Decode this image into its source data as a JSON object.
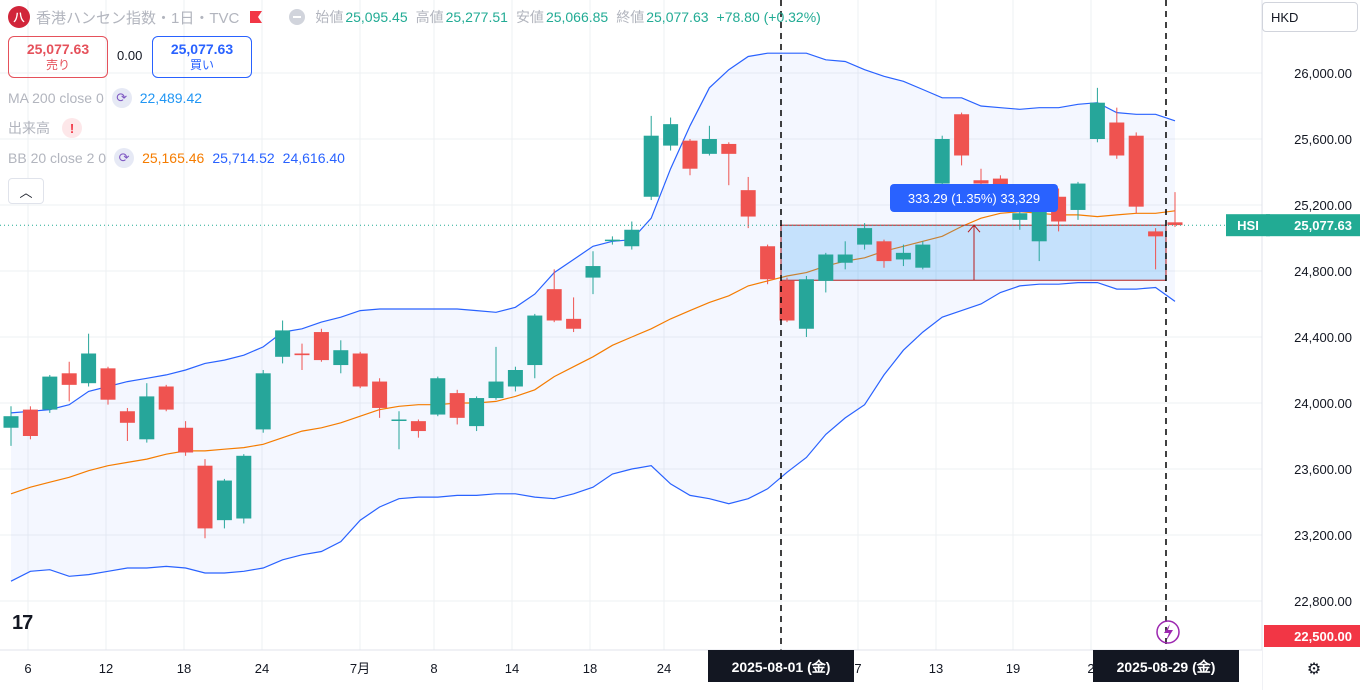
{
  "header": {
    "logo_text": "八",
    "title": "香港ハンセン指数・1日・TVC",
    "flag_icon": "red-flag-icon",
    "eye_icon": "eye-hidden-icon",
    "ohlc": {
      "open_label": "始値",
      "open": "25,095.45",
      "high_label": "高値",
      "high": "25,277.51",
      "low_label": "安値",
      "low": "25,066.85",
      "close_label": "終値",
      "close": "25,077.63",
      "change": "+78.80 (+0.32%)"
    }
  },
  "trade": {
    "sell_price": "25,077.63",
    "sell_label": "売り",
    "spread": "0.00",
    "buy_price": "25,077.63",
    "buy_label": "買い"
  },
  "indicators": {
    "ma_label": "MA 200 close 0",
    "ma_value": "22,489.42",
    "volume_label": "出来高",
    "bb_label": "BB 20 close 2 0",
    "bb_basis": "25,165.46",
    "bb_upper": "25,714.52",
    "bb_lower": "24,616.40"
  },
  "currency": "HKD",
  "price_axis": {
    "ticks": [
      "26,000.00",
      "25,600.00",
      "25,200.00",
      "24,800.00",
      "24,400.00",
      "24,000.00",
      "23,600.00",
      "23,200.00",
      "22,800.00"
    ],
    "symbol_label": "HSI",
    "last_price": "25,077.63",
    "cursor_price": "22,500.00"
  },
  "time_axis": {
    "ticks": [
      "6",
      "12",
      "18",
      "24",
      "7月",
      "8",
      "14",
      "18",
      "24",
      "7",
      "13",
      "19",
      "2"
    ],
    "start_marker": "2025-08-01 (金)",
    "end_marker": "2025-08-29 (金)"
  },
  "measure": {
    "label": "333.29 (1.35%) 33,329"
  },
  "colors": {
    "up": "#26a69a",
    "down": "#ef5350",
    "band": "#2962ff",
    "basis": "#f57c00",
    "accent": "#2962ff",
    "last_price": "#22ab94",
    "cursor": "#f23645"
  },
  "chart_data": {
    "type": "candlestick",
    "title": "香港ハンセン指数・1日・TVC",
    "ylim": [
      22500,
      26350
    ],
    "candles": [
      {
        "o": 23850,
        "c": 23920,
        "h": 23980,
        "l": 23740
      },
      {
        "o": 23960,
        "c": 23800,
        "h": 23980,
        "l": 23780
      },
      {
        "o": 23960,
        "c": 24160,
        "h": 24170,
        "l": 23940
      },
      {
        "o": 24180,
        "c": 24110,
        "h": 24250,
        "l": 24010
      },
      {
        "o": 24120,
        "c": 24300,
        "h": 24420,
        "l": 24100
      },
      {
        "o": 24210,
        "c": 24020,
        "h": 24220,
        "l": 23990
      },
      {
        "o": 23950,
        "c": 23880,
        "h": 23970,
        "l": 23770
      },
      {
        "o": 23780,
        "c": 24040,
        "h": 24120,
        "l": 23760
      },
      {
        "o": 24100,
        "c": 23960,
        "h": 24110,
        "l": 23950
      },
      {
        "o": 23850,
        "c": 23700,
        "h": 23890,
        "l": 23680
      },
      {
        "o": 23620,
        "c": 23240,
        "h": 23660,
        "l": 23180
      },
      {
        "o": 23290,
        "c": 23530,
        "h": 23540,
        "l": 23240
      },
      {
        "o": 23300,
        "c": 23680,
        "h": 23690,
        "l": 23270
      },
      {
        "o": 23840,
        "c": 24180,
        "h": 24200,
        "l": 23820
      },
      {
        "o": 24280,
        "c": 24440,
        "h": 24500,
        "l": 24240
      },
      {
        "o": 24300,
        "c": 24290,
        "h": 24360,
        "l": 24200
      },
      {
        "o": 24430,
        "c": 24260,
        "h": 24450,
        "l": 24250
      },
      {
        "o": 24230,
        "c": 24320,
        "h": 24380,
        "l": 24180
      },
      {
        "o": 24300,
        "c": 24100,
        "h": 24310,
        "l": 24090
      },
      {
        "o": 24130,
        "c": 23970,
        "h": 24150,
        "l": 23910
      },
      {
        "o": 23900,
        "c": 23900,
        "h": 23950,
        "l": 23720
      },
      {
        "o": 23890,
        "c": 23830,
        "h": 23900,
        "l": 23790
      },
      {
        "o": 23930,
        "c": 24150,
        "h": 24160,
        "l": 23920
      },
      {
        "o": 24060,
        "c": 23910,
        "h": 24080,
        "l": 23870
      },
      {
        "o": 23860,
        "c": 24030,
        "h": 24040,
        "l": 23830
      },
      {
        "o": 24030,
        "c": 24130,
        "h": 24340,
        "l": 24020
      },
      {
        "o": 24100,
        "c": 24200,
        "h": 24220,
        "l": 24070
      },
      {
        "o": 24230,
        "c": 24530,
        "h": 24540,
        "l": 24150
      },
      {
        "o": 24690,
        "c": 24500,
        "h": 24810,
        "l": 24490
      },
      {
        "o": 24510,
        "c": 24450,
        "h": 24640,
        "l": 24430
      },
      {
        "o": 24760,
        "c": 24830,
        "h": 24920,
        "l": 24660
      },
      {
        "o": 24990,
        "c": 24990,
        "h": 25010,
        "l": 24960
      },
      {
        "o": 24950,
        "c": 25050,
        "h": 25100,
        "l": 24930
      },
      {
        "o": 25250,
        "c": 25620,
        "h": 25740,
        "l": 25230
      },
      {
        "o": 25560,
        "c": 25690,
        "h": 25730,
        "l": 25530
      },
      {
        "o": 25590,
        "c": 25420,
        "h": 25600,
        "l": 25380
      },
      {
        "o": 25510,
        "c": 25600,
        "h": 25680,
        "l": 25500
      },
      {
        "o": 25570,
        "c": 25510,
        "h": 25580,
        "l": 25320
      },
      {
        "o": 25290,
        "c": 25130,
        "h": 25370,
        "l": 25060
      },
      {
        "o": 24950,
        "c": 24750,
        "h": 24960,
        "l": 24720
      },
      {
        "o": 24740,
        "c": 24500,
        "h": 24760,
        "l": 24490
      },
      {
        "o": 24450,
        "c": 24750,
        "h": 24770,
        "l": 24400
      },
      {
        "o": 24740,
        "c": 24900,
        "h": 24910,
        "l": 24670
      },
      {
        "o": 24850,
        "c": 24900,
        "h": 24980,
        "l": 24810
      },
      {
        "o": 24960,
        "c": 25060,
        "h": 25090,
        "l": 24930
      },
      {
        "o": 24980,
        "c": 24860,
        "h": 24990,
        "l": 24820
      },
      {
        "o": 24870,
        "c": 24910,
        "h": 24960,
        "l": 24830
      },
      {
        "o": 24820,
        "c": 24960,
        "h": 24980,
        "l": 24810
      },
      {
        "o": 25330,
        "c": 25600,
        "h": 25620,
        "l": 25320
      },
      {
        "o": 25750,
        "c": 25500,
        "h": 25760,
        "l": 25440
      },
      {
        "o": 25350,
        "c": 25330,
        "h": 25420,
        "l": 25200
      },
      {
        "o": 25360,
        "c": 25280,
        "h": 25380,
        "l": 25220
      },
      {
        "o": 25110,
        "c": 25150,
        "h": 25160,
        "l": 25050
      },
      {
        "o": 24980,
        "c": 25210,
        "h": 25220,
        "l": 24860
      },
      {
        "o": 25250,
        "c": 25100,
        "h": 25300,
        "l": 25040
      },
      {
        "o": 25170,
        "c": 25330,
        "h": 25340,
        "l": 25110
      },
      {
        "o": 25600,
        "c": 25820,
        "h": 25910,
        "l": 25580
      },
      {
        "o": 25700,
        "c": 25500,
        "h": 25790,
        "l": 25480
      },
      {
        "o": 25620,
        "c": 25190,
        "h": 25640,
        "l": 25150
      },
      {
        "o": 25040,
        "c": 25010,
        "h": 25060,
        "l": 24810
      },
      {
        "o": 25095,
        "c": 25078,
        "h": 25278,
        "l": 25067
      }
    ],
    "bb_upper": [
      23940,
      23950,
      23960,
      23990,
      24070,
      24100,
      24130,
      24150,
      24170,
      24200,
      24240,
      24260,
      24290,
      24340,
      24430,
      24450,
      24490,
      24520,
      24560,
      24570,
      24570,
      24570,
      24570,
      24570,
      24560,
      24550,
      24580,
      24660,
      24790,
      24870,
      24950,
      24980,
      24990,
      25120,
      25420,
      25680,
      25910,
      26020,
      26100,
      26120,
      26120,
      26120,
      26080,
      26070,
      26020,
      25980,
      25950,
      25900,
      25850,
      25850,
      25800,
      25790,
      25780,
      25790,
      25790,
      25810,
      25820,
      25760,
      25750,
      25750,
      25710
    ],
    "bb_basis": [
      23450,
      23490,
      23520,
      23550,
      23590,
      23620,
      23640,
      23660,
      23690,
      23710,
      23710,
      23720,
      23730,
      23750,
      23790,
      23830,
      23850,
      23880,
      23920,
      23960,
      23980,
      23990,
      23990,
      24000,
      24000,
      24010,
      24040,
      24080,
      24160,
      24220,
      24280,
      24350,
      24400,
      24450,
      24510,
      24560,
      24610,
      24650,
      24710,
      24740,
      24770,
      24790,
      24830,
      24860,
      24880,
      24920,
      24950,
      24980,
      25010,
      25070,
      25120,
      25150,
      25160,
      25150,
      25140,
      25140,
      25130,
      25140,
      25150,
      25150,
      25165
    ],
    "bb_lower": [
      22920,
      22980,
      22990,
      22950,
      22960,
      22980,
      23000,
      23000,
      23010,
      23000,
      22970,
      22970,
      22980,
      23000,
      23050,
      23080,
      23100,
      23160,
      23290,
      23370,
      23420,
      23430,
      23430,
      23440,
      23440,
      23450,
      23450,
      23430,
      23420,
      23450,
      23490,
      23570,
      23600,
      23620,
      23510,
      23440,
      23420,
      23390,
      23420,
      23480,
      23580,
      23670,
      23810,
      23910,
      23990,
      24170,
      24320,
      24430,
      24520,
      24560,
      24600,
      24670,
      24710,
      24720,
      24720,
      24730,
      24730,
      24690,
      24690,
      24700,
      24616
    ]
  }
}
